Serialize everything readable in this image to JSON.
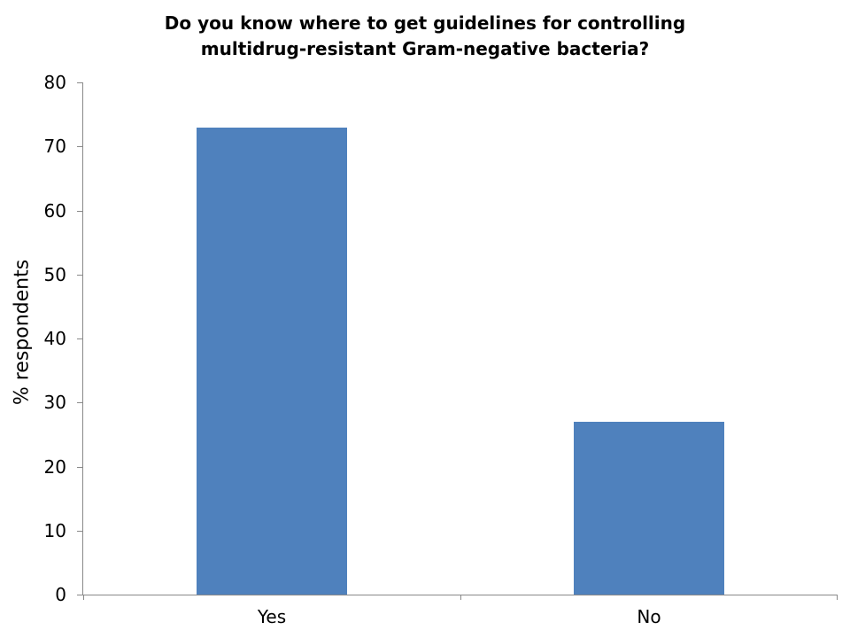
{
  "chart_data": {
    "type": "bar",
    "title": "Do you know where to get guidelines for controlling multidrug-resistant Gram-negative bacteria?",
    "title_lines": [
      "Do you know where to get guidelines for controlling",
      "multidrug-resistant Gram-negative bacteria?"
    ],
    "categories": [
      "Yes",
      "No"
    ],
    "values": [
      73,
      27
    ],
    "xlabel": "",
    "ylabel": "% respondents",
    "ylim": [
      0,
      80
    ],
    "yticks": [
      0,
      10,
      20,
      30,
      40,
      50,
      60,
      70,
      80
    ],
    "grid": false,
    "legend": false,
    "colors": {
      "bar_fill": "#4F81BD",
      "axis_line": "#898989",
      "text": "#000000",
      "background": "#FFFFFF"
    }
  }
}
